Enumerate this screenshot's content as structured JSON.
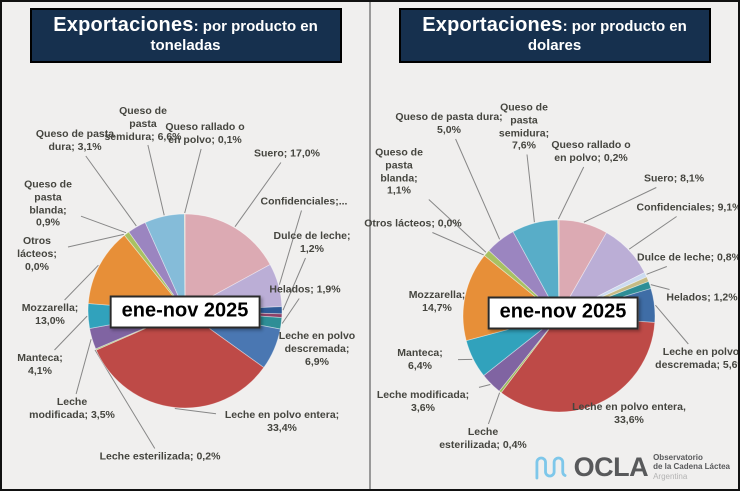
{
  "page": {
    "background": "#F0EFEE",
    "title_bar_color": "#16304E",
    "period_label": "ene-nov 2025"
  },
  "chart_data": [
    {
      "type": "pie",
      "title_emphasis": "Exportaciones",
      "title_rest": ": por producto en toneladas",
      "center_label": "ene-nov 2025",
      "legend_position": "none",
      "labels_position": "outside-with-leader-lines",
      "slices": [
        {
          "name": "Suero",
          "pct": 17.0,
          "label": "Suero; 17,0%",
          "color": "#DCAAB3"
        },
        {
          "name": "Confidenciales",
          "pct": 7.2,
          "label": "Confidenciales;...",
          "color": "#BBAED6"
        },
        {
          "name": "Dulce de leche",
          "pct": 1.2,
          "label": "Dulce de leche; 1,2%",
          "color": "#2F5A96"
        },
        {
          "name": "sin etiqueta",
          "pct": 0.6,
          "label": "",
          "color": "#8E4168"
        },
        {
          "name": "Helados",
          "pct": 1.9,
          "label": "Helados; 1,9%",
          "color": "#2E8E96"
        },
        {
          "name": "Leche en polvo descremada",
          "pct": 6.9,
          "label": "Leche en polvo descremada; 6,9%",
          "color": "#4A77B2"
        },
        {
          "name": "Leche en polvo entera",
          "pct": 33.4,
          "label": "Leche en polvo entera; 33,4%",
          "color": "#BE4A47"
        },
        {
          "name": "Leche esterilizada",
          "pct": 0.2,
          "label": "Leche esterilizada; 0,2%",
          "color": "#9BBB59"
        },
        {
          "name": "Leche modificada",
          "pct": 3.5,
          "label": "Leche modificada; 3,5%",
          "color": "#8064A2"
        },
        {
          "name": "Manteca",
          "pct": 4.1,
          "label": "Manteca; 4,1%",
          "color": "#31A2BC"
        },
        {
          "name": "Mozzarella",
          "pct": 13.0,
          "label": "Mozzarella; 13,0%",
          "color": "#E78F38"
        },
        {
          "name": "Otros lácteos",
          "pct": 0.0,
          "label": "Otros lácteos; 0,0%",
          "color": "#C0C0C0"
        },
        {
          "name": "Queso de pasta blanda",
          "pct": 0.9,
          "label": "Queso de pasta blanda; 0,9%",
          "color": "#A8C162"
        },
        {
          "name": "Queso de pasta dura",
          "pct": 3.1,
          "label": "Queso de pasta dura; 3,1%",
          "color": "#9B85C0"
        },
        {
          "name": "Queso de pasta semidura",
          "pct": 6.6,
          "label": "Queso de pasta semidura; 6,6%",
          "color": "#85BCD9"
        },
        {
          "name": "Queso rallado o en polvo",
          "pct": 0.1,
          "label": "Queso rallado o en polvo; 0,1%",
          "color": "#D9C9A5"
        }
      ]
    },
    {
      "type": "pie",
      "title_emphasis": "Exportaciones",
      "title_rest": ": por producto en dolares",
      "center_label": "ene-nov 2025",
      "legend_position": "none",
      "labels_position": "outside-with-leader-lines",
      "slices": [
        {
          "name": "Suero",
          "pct": 8.1,
          "label": "Suero; 8,1%",
          "color": "#DCAAB3"
        },
        {
          "name": "Confidenciales",
          "pct": 9.1,
          "label": "Confidenciales; 9,1%",
          "color": "#BBAED6"
        },
        {
          "name": "Dulce de leche",
          "pct": 0.8,
          "label": "Dulce de leche; 0,8%",
          "color": "#CCDBF0"
        },
        {
          "name": "sin etiqueta",
          "pct": 0.8,
          "label": "",
          "color": "#C6BB85"
        },
        {
          "name": "Helados",
          "pct": 1.2,
          "label": "Helados; 1,2%",
          "color": "#2E8E96"
        },
        {
          "name": "Leche en polvo descremada",
          "pct": 5.6,
          "label": "Leche en polvo descremada; 5,6%",
          "color": "#3F6DA6"
        },
        {
          "name": "Leche en polvo entera",
          "pct": 33.6,
          "label": "Leche en polvo entera, 33,6%",
          "color": "#BE4A47"
        },
        {
          "name": "Leche esterilizada",
          "pct": 0.4,
          "label": "Leche esterilizada; 0,4%",
          "color": "#9BBB59"
        },
        {
          "name": "Leche modificada",
          "pct": 3.6,
          "label": "Leche modificada; 3,6%",
          "color": "#8064A2"
        },
        {
          "name": "Manteca",
          "pct": 6.4,
          "label": "Manteca; 6,4%",
          "color": "#31A2BC"
        },
        {
          "name": "Mozzarella",
          "pct": 14.7,
          "label": "Mozzarella; 14,7%",
          "color": "#E78F38"
        },
        {
          "name": "Otros lácteos",
          "pct": 0.0,
          "label": "Otros lácteos; 0,0%",
          "color": "#C0C0C0"
        },
        {
          "name": "Queso de pasta blanda",
          "pct": 1.1,
          "label": "Queso de pasta blanda; 1,1%",
          "color": "#A8C162"
        },
        {
          "name": "Queso de pasta dura",
          "pct": 5.0,
          "label": "Queso de pasta dura; 5,0%",
          "color": "#9B85C0"
        },
        {
          "name": "Queso de pasta semidura",
          "pct": 7.6,
          "label": "Queso de pasta semidura; 7,6%",
          "color": "#58ADC8"
        },
        {
          "name": "Queso rallado o en polvo",
          "pct": 0.2,
          "label": "Queso rallado o en polvo; 0,2%",
          "color": "#D9C9A5"
        }
      ]
    }
  ],
  "footer": {
    "logo_word": "OCLA",
    "org_line1": "Observatorio",
    "org_line2": "de la Cadena Láctea",
    "org_line3": "Argentina",
    "logo_wave_color": "#7EC7EA",
    "text_color": "#58595B"
  }
}
